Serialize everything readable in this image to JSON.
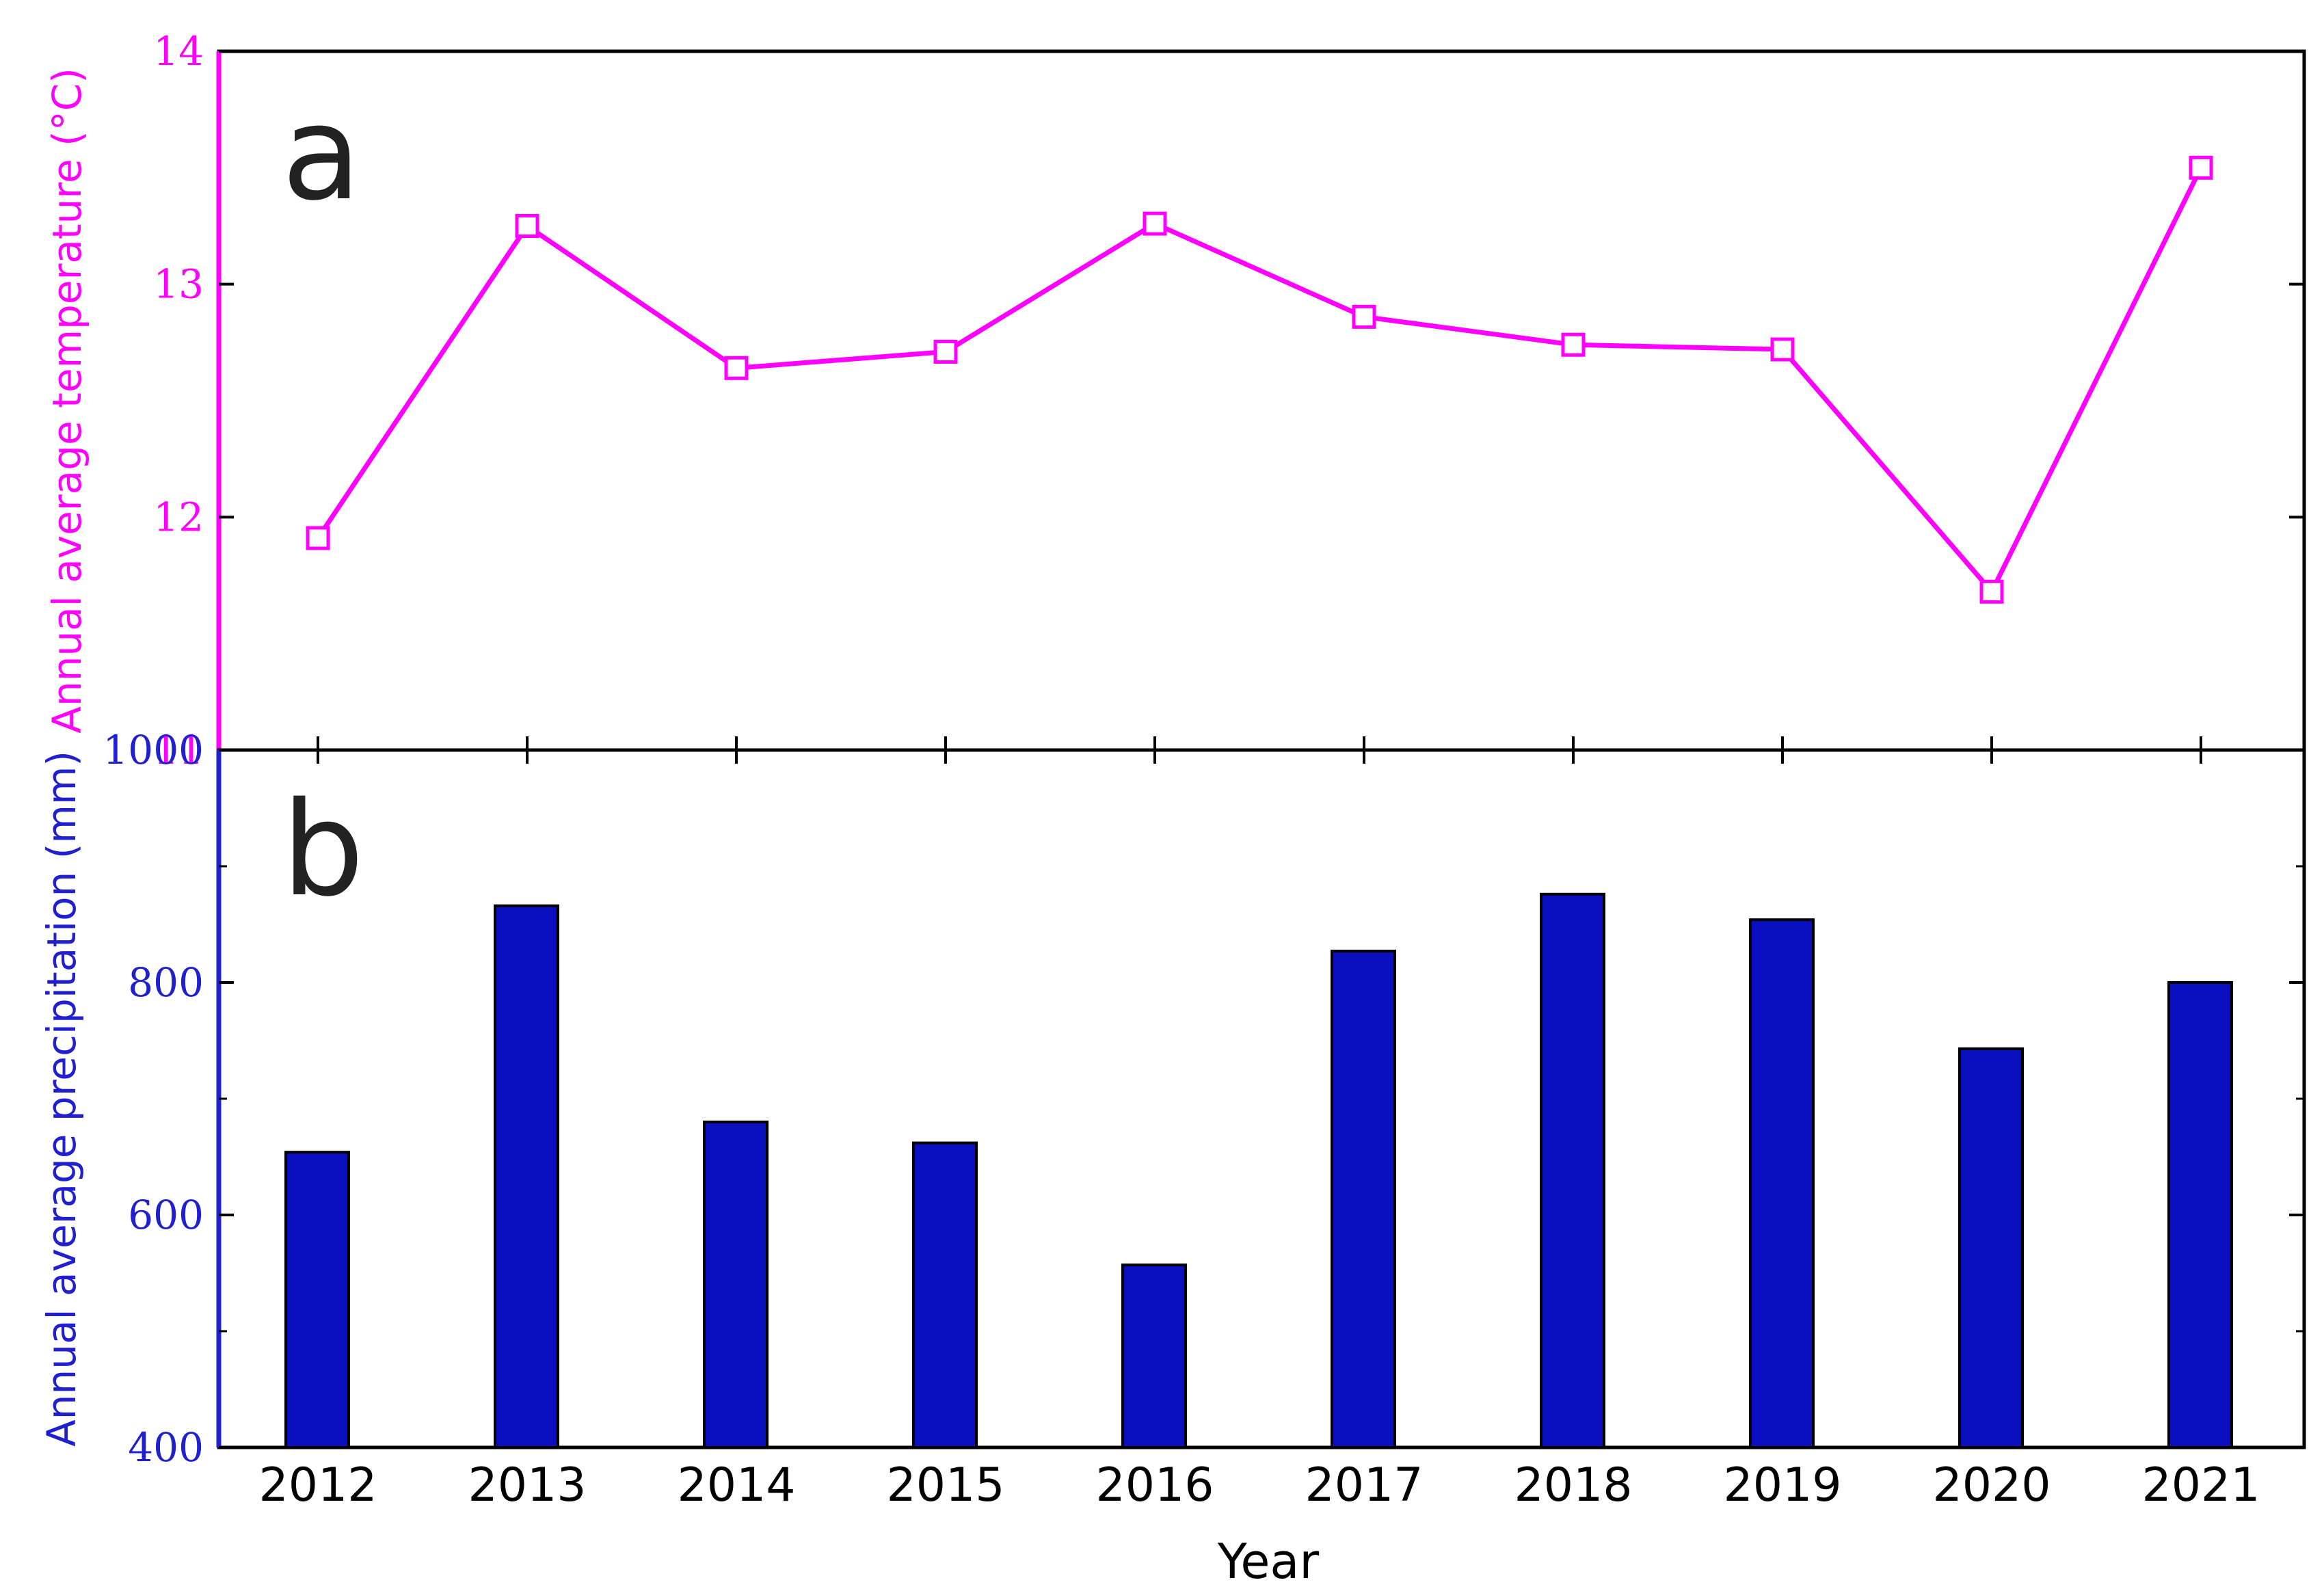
{
  "chart_data": [
    {
      "type": "line",
      "panel_label": "a",
      "x": [
        "2012",
        "2013",
        "2014",
        "2015",
        "2016",
        "2017",
        "2018",
        "2019",
        "2020",
        "2021"
      ],
      "series": [
        {
          "values": [
            11.91,
            13.25,
            12.64,
            12.71,
            13.26,
            12.86,
            12.74,
            12.72,
            11.68,
            13.5
          ]
        }
      ],
      "ylabel": "Annual average temperature (°C)",
      "ylim": [
        11,
        14
      ],
      "yticks": [
        "11",
        "12",
        "13",
        "14"
      ],
      "marker": "open-square",
      "color": "#ff00ff",
      "grid": false
    },
    {
      "type": "bar",
      "panel_label": "b",
      "categories": [
        "2012",
        "2013",
        "2014",
        "2015",
        "2016",
        "2017",
        "2018",
        "2019",
        "2020",
        "2021"
      ],
      "values": [
        654,
        866,
        680,
        662,
        557,
        827,
        876,
        854,
        743,
        800
      ],
      "xlabel": "Year",
      "ylabel": "Annual average precipitation (mm)",
      "ylim": [
        400,
        1000
      ],
      "yticks": [
        "400",
        "600",
        "800",
        "1000"
      ],
      "color": "#0a10c0",
      "grid": false
    }
  ]
}
